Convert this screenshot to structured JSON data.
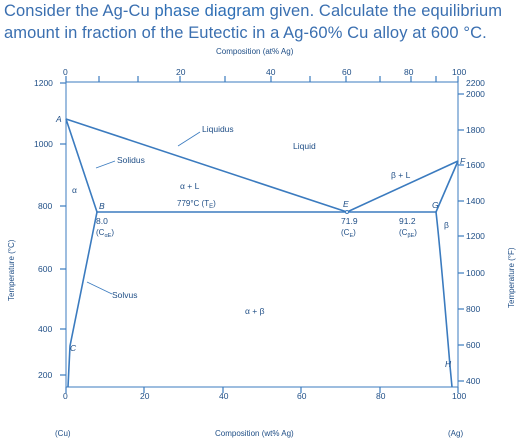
{
  "question": {
    "part1": "Consider the Ag-Cu ",
    "link": "phase diagram",
    "part2": " given. Calculate the equilibrium amount in fraction of the Eutectic in a Ag-60% Cu alloy at 600 °C."
  },
  "diagram": {
    "top_axis_title": "Composition (at% Ag)",
    "top_ticks": [
      "0",
      "20",
      "40",
      "60",
      "80",
      "100"
    ],
    "bottom_axis_title": "Composition (wt% Ag)",
    "bottom_ticks": [
      "0",
      "20",
      "40",
      "60",
      "80",
      "100"
    ],
    "bottom_end_left": "(Cu)",
    "bottom_end_right": "(Ag)",
    "left_axis_title": "Temperature (°C)",
    "left_ticks": [
      "200",
      "400",
      "600",
      "800",
      "1000",
      "1200"
    ],
    "right_axis_title": "Temperature (°F)",
    "right_ticks": [
      "400",
      "600",
      "800",
      "1000",
      "1200",
      "1400",
      "1600",
      "1800",
      "2000",
      "2200"
    ],
    "labels": {
      "liquidus": "Liquidus",
      "liquid": "Liquid",
      "solidus": "Solidus",
      "solvus": "Solvus",
      "alpha": "α",
      "beta": "β",
      "alpha_plus_l": "α + L",
      "beta_plus_l": "β + L",
      "alpha_plus_beta": "α + β",
      "eutectic_temp": "779°C (T",
      "eutectic_temp_sub": "E",
      "eutectic_temp_close": ")",
      "ca_value": "8.0",
      "ca_label": "(C",
      "ca_sub": "αE",
      "ca_close": ")",
      "ce_value": "71.9",
      "ce_label": "(C",
      "ce_sub": "E",
      "ce_close": ")",
      "cb_value": "91.2",
      "cb_label": "(C",
      "cb_sub": "βE",
      "cb_close": ")",
      "pt_a": "A",
      "pt_b": "B",
      "pt_c": "C",
      "pt_e": "E",
      "pt_f": "F",
      "pt_g": "G",
      "pt_h": "H"
    }
  },
  "colors": {
    "accent": "#3b7bbf",
    "text": "#1f4e86",
    "line": "#3b7bbf"
  }
}
